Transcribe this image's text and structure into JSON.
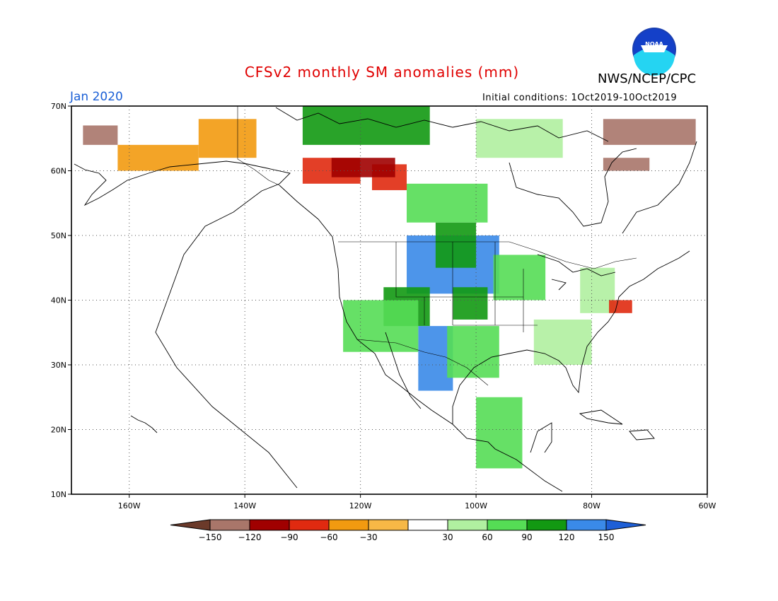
{
  "title": "CFSv2 monthly SM anomalies (mm)",
  "agency": "NWS/NCEP/CPC",
  "logo_text": "NOAA",
  "valid_month": "Jan 2020",
  "initial_conditions": "Initial conditions: 1Oct2019-10Oct2019",
  "map": {
    "lon_range": [
      -170,
      -60
    ],
    "lat_range": [
      10,
      70
    ],
    "lon_ticks": [
      {
        "value": -160,
        "label": "160W"
      },
      {
        "value": -140,
        "label": "140W"
      },
      {
        "value": -120,
        "label": "120W"
      },
      {
        "value": -100,
        "label": "100W"
      },
      {
        "value": -80,
        "label": "80W"
      },
      {
        "value": -60,
        "label": "60W"
      }
    ],
    "lat_ticks": [
      {
        "value": 10,
        "label": "10N"
      },
      {
        "value": 20,
        "label": "20N"
      },
      {
        "value": 30,
        "label": "30N"
      },
      {
        "value": 40,
        "label": "40N"
      },
      {
        "value": 50,
        "label": "50N"
      },
      {
        "value": 60,
        "label": "60N"
      },
      {
        "value": 70,
        "label": "70N"
      }
    ],
    "grid": "dotted"
  },
  "colorbar": {
    "labels": [
      "−150",
      "−120",
      "−90",
      "−60",
      "−30",
      "30",
      "60",
      "90",
      "120",
      "150"
    ],
    "colors": [
      "#6b3a2a",
      "#a9766a",
      "#a00000",
      "#e02a10",
      "#f29a10",
      "#f7b846",
      "#ffffff",
      "#b0f0a0",
      "#55dd55",
      "#129912",
      "#3a8ae8",
      "#1e5fd6"
    ]
  },
  "chart_data": {
    "type": "heatmap",
    "title": "CFSv2 monthly SM anomalies (mm)",
    "units": "mm",
    "valid_month": "Jan 2020",
    "xlim": [
      -170,
      -60
    ],
    "ylim": [
      10,
      70
    ],
    "bins": [
      -150,
      -120,
      -90,
      -60,
      -30,
      30,
      60,
      90,
      120,
      150
    ],
    "regions": [
      {
        "lon": [
          -112,
          -96
        ],
        "lat": [
          41,
          50
        ],
        "class": 10
      },
      {
        "lon": [
          -107,
          -100
        ],
        "lat": [
          45,
          52
        ],
        "class": 9
      },
      {
        "lon": [
          -116,
          -108
        ],
        "lat": [
          36,
          42
        ],
        "class": 9
      },
      {
        "lon": [
          -110,
          -104
        ],
        "lat": [
          26,
          36
        ],
        "class": 10
      },
      {
        "lon": [
          -104,
          -98
        ],
        "lat": [
          37,
          42
        ],
        "class": 9
      },
      {
        "lon": [
          -97,
          -88
        ],
        "lat": [
          40,
          47
        ],
        "class": 8
      },
      {
        "lon": [
          -90,
          -80
        ],
        "lat": [
          30,
          37
        ],
        "class": 7
      },
      {
        "lon": [
          -123,
          -110
        ],
        "lat": [
          32,
          40
        ],
        "class": 8
      },
      {
        "lon": [
          -105,
          -96
        ],
        "lat": [
          28,
          36
        ],
        "class": 8
      },
      {
        "lon": [
          -100,
          -92
        ],
        "lat": [
          14,
          25
        ],
        "class": 8
      },
      {
        "lon": [
          -82,
          -76
        ],
        "lat": [
          38,
          45
        ],
        "class": 7
      },
      {
        "lon": [
          -112,
          -98
        ],
        "lat": [
          52,
          58
        ],
        "class": 8
      },
      {
        "lon": [
          -100,
          -85
        ],
        "lat": [
          62,
          68
        ],
        "class": 7
      },
      {
        "lon": [
          -130,
          -108
        ],
        "lat": [
          64,
          70
        ],
        "class": 9
      },
      {
        "lon": [
          -130,
          -120
        ],
        "lat": [
          58,
          62
        ],
        "class": 3
      },
      {
        "lon": [
          -118,
          -112
        ],
        "lat": [
          57,
          61
        ],
        "class": 3
      },
      {
        "lon": [
          -125,
          -114
        ],
        "lat": [
          59,
          62
        ],
        "class": 2
      },
      {
        "lon": [
          -162,
          -148
        ],
        "lat": [
          60,
          64
        ],
        "class": 4
      },
      {
        "lon": [
          -168,
          -162
        ],
        "lat": [
          64,
          67
        ],
        "class": 1
      },
      {
        "lon": [
          -148,
          -138
        ],
        "lat": [
          62,
          68
        ],
        "class": 4
      },
      {
        "lon": [
          -78,
          -70
        ],
        "lat": [
          60,
          62
        ],
        "class": 1
      },
      {
        "lon": [
          -78,
          -62
        ],
        "lat": [
          64,
          68
        ],
        "class": 1
      },
      {
        "lon": [
          -77,
          -73
        ],
        "lat": [
          38,
          40
        ],
        "class": 3
      }
    ]
  }
}
